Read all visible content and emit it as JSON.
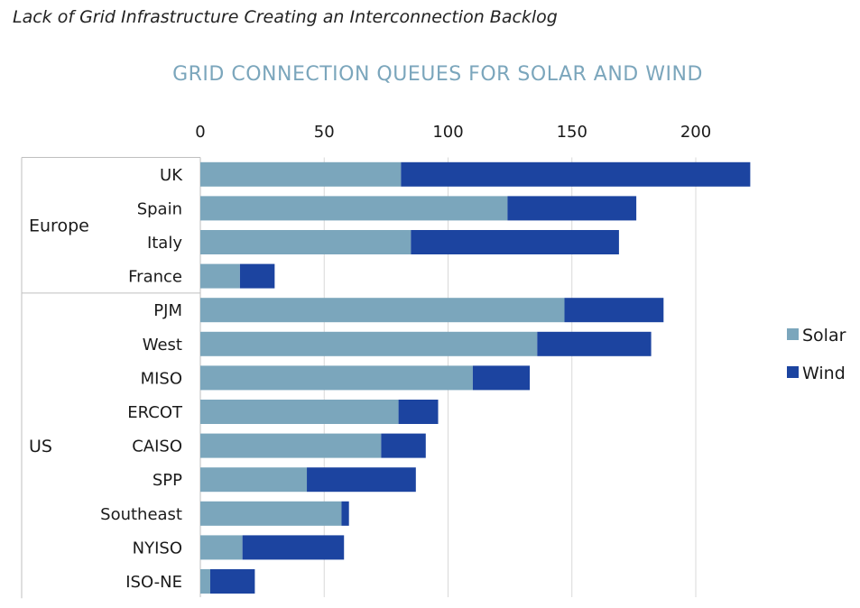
{
  "header": {
    "subtitle": "Lack of Grid Infrastructure Creating an Interconnection Backlog"
  },
  "colors": {
    "solar": "#7ba6bc",
    "wind": "#1c44a0",
    "grid": "#d9d9d9",
    "title": "#7ba6bc"
  },
  "chart_data": {
    "type": "bar",
    "orientation": "horizontal",
    "stacked": true,
    "title": "GRID CONNECTION QUEUES FOR SOLAR AND WIND",
    "xlabel": "",
    "ylabel": "",
    "xlim": [
      0,
      225
    ],
    "x_ticks": [
      0,
      50,
      100,
      150,
      200
    ],
    "x_axis_position": "top",
    "grid": true,
    "legend_position": "right",
    "categories": [
      "UK",
      "Spain",
      "Italy",
      "France",
      "PJM",
      "West",
      "MISO",
      "ERCOT",
      "CAISO",
      "SPP",
      "Southeast",
      "NYISO",
      "ISO-NE"
    ],
    "groups": [
      {
        "name": "Europe",
        "categories": [
          "UK",
          "Spain",
          "Italy",
          "France"
        ]
      },
      {
        "name": "US",
        "categories": [
          "PJM",
          "West",
          "MISO",
          "ERCOT",
          "CAISO",
          "SPP",
          "Southeast",
          "NYISO",
          "ISO-NE"
        ]
      }
    ],
    "series": [
      {
        "name": "Solar",
        "values": [
          81,
          124,
          85,
          16,
          147,
          136,
          110,
          80,
          73,
          43,
          57,
          17,
          4
        ]
      },
      {
        "name": "Wind",
        "values": [
          141,
          52,
          84,
          14,
          40,
          46,
          23,
          16,
          18,
          44,
          3,
          41,
          18
        ]
      }
    ]
  }
}
